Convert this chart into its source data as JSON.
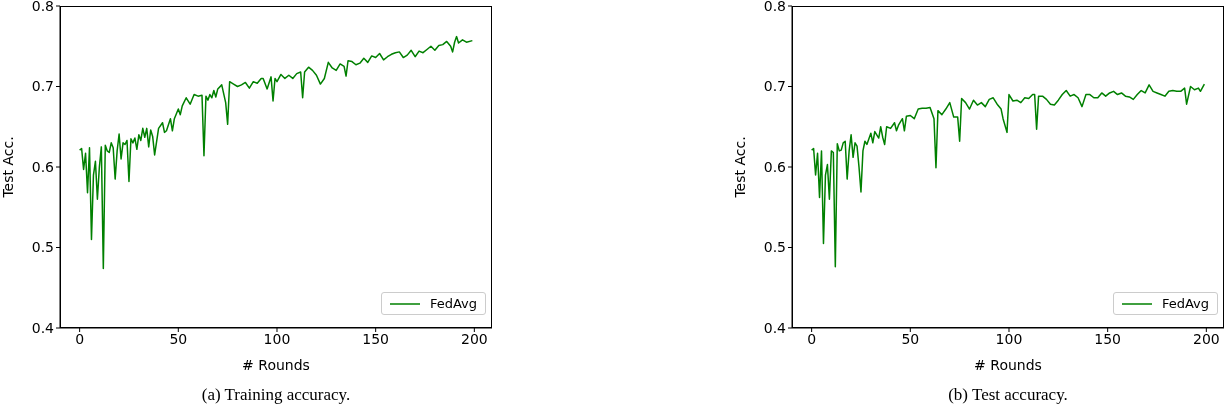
{
  "chart_data": [
    {
      "type": "line",
      "xlabel": "# Rounds",
      "ylabel": "Test Acc.",
      "annotations": [
        "(a) Training accuracy."
      ],
      "xlim": [
        -9.95,
        208.95
      ],
      "xticks": [
        0,
        50,
        100,
        150,
        200
      ],
      "ylim": [
        0.4,
        0.8
      ],
      "yticks": [
        0.4,
        0.5,
        0.6,
        0.7,
        0.8
      ],
      "legend": "bottom right",
      "line_style": "solid",
      "x": [
        0,
        1,
        2,
        3,
        4,
        5,
        6,
        7,
        8,
        9,
        10,
        11,
        12,
        13,
        14,
        15,
        16,
        17,
        18,
        19,
        20,
        21,
        22,
        23,
        24,
        25,
        26,
        27,
        28,
        29,
        30,
        31,
        32,
        33,
        34,
        35,
        36,
        37,
        38,
        40,
        42,
        43,
        44,
        46,
        47,
        48,
        50,
        51,
        52,
        54,
        56,
        58,
        60,
        62,
        63,
        64,
        65,
        66,
        67,
        68,
        69,
        70,
        72,
        74,
        75,
        76,
        78,
        80,
        82,
        84,
        86,
        88,
        90,
        92,
        93,
        95,
        97,
        98,
        99,
        100,
        102,
        104,
        106,
        108,
        110,
        112,
        113,
        114,
        116,
        118,
        120,
        122,
        124,
        126,
        128,
        130,
        132,
        134,
        135,
        136,
        138,
        140,
        142,
        144,
        146,
        148,
        150,
        152,
        154,
        156,
        158,
        160,
        162,
        164,
        166,
        168,
        170,
        172,
        174,
        176,
        178,
        180,
        182,
        184,
        186,
        188,
        189,
        190,
        191,
        192,
        194,
        196,
        199
      ],
      "series": [
        {
          "name": "FedAvg",
          "color": "#008000",
          "values": [
            0.621,
            0.623,
            0.597,
            0.617,
            0.568,
            0.624,
            0.51,
            0.59,
            0.607,
            0.56,
            0.6,
            0.625,
            0.474,
            0.627,
            0.62,
            0.618,
            0.63,
            0.624,
            0.585,
            0.62,
            0.641,
            0.61,
            0.63,
            0.628,
            0.633,
            0.582,
            0.635,
            0.63,
            0.636,
            0.622,
            0.64,
            0.633,
            0.648,
            0.637,
            0.648,
            0.625,
            0.646,
            0.638,
            0.615,
            0.648,
            0.655,
            0.643,
            0.645,
            0.66,
            0.645,
            0.66,
            0.672,
            0.665,
            0.676,
            0.686,
            0.678,
            0.69,
            0.688,
            0.689,
            0.614,
            0.688,
            0.683,
            0.69,
            0.686,
            0.695,
            0.687,
            0.697,
            0.702,
            0.68,
            0.653,
            0.706,
            0.703,
            0.7,
            0.702,
            0.705,
            0.698,
            0.706,
            0.704,
            0.71,
            0.71,
            0.697,
            0.712,
            0.682,
            0.71,
            0.706,
            0.715,
            0.71,
            0.714,
            0.71,
            0.716,
            0.718,
            0.686,
            0.718,
            0.724,
            0.72,
            0.714,
            0.703,
            0.71,
            0.73,
            0.723,
            0.72,
            0.728,
            0.725,
            0.713,
            0.732,
            0.731,
            0.727,
            0.729,
            0.735,
            0.73,
            0.738,
            0.736,
            0.741,
            0.733,
            0.737,
            0.74,
            0.742,
            0.743,
            0.736,
            0.739,
            0.745,
            0.737,
            0.744,
            0.742,
            0.746,
            0.75,
            0.745,
            0.751,
            0.752,
            0.756,
            0.75,
            0.743,
            0.755,
            0.762,
            0.754,
            0.758,
            0.755,
            0.757
          ]
        }
      ]
    },
    {
      "type": "line",
      "xlabel": "# Rounds",
      "ylabel": "Test Acc.",
      "annotations": [
        "(b) Test accuracy."
      ],
      "xlim": [
        -9.95,
        208.95
      ],
      "xticks": [
        0,
        50,
        100,
        150,
        200
      ],
      "ylim": [
        0.4,
        0.8
      ],
      "yticks": [
        0.4,
        0.5,
        0.6,
        0.7,
        0.8
      ],
      "legend": "bottom right",
      "line_style": "solid",
      "x": [
        0,
        1,
        2,
        3,
        4,
        5,
        6,
        7,
        8,
        9,
        10,
        11,
        12,
        13,
        14,
        15,
        16,
        17,
        18,
        19,
        20,
        21,
        22,
        23,
        24,
        25,
        26,
        27,
        28,
        30,
        31,
        32,
        34,
        35,
        36,
        37,
        38,
        40,
        42,
        43,
        44,
        46,
        47,
        48,
        50,
        52,
        54,
        56,
        58,
        60,
        62,
        63,
        64,
        66,
        68,
        70,
        72,
        74,
        75,
        76,
        78,
        80,
        82,
        84,
        86,
        88,
        90,
        92,
        94,
        96,
        97,
        99,
        100,
        102,
        104,
        106,
        108,
        110,
        112,
        113,
        114,
        115,
        117,
        119,
        121,
        123,
        125,
        127,
        129,
        131,
        133,
        135,
        137,
        139,
        141,
        143,
        145,
        147,
        149,
        151,
        153,
        155,
        157,
        159,
        161,
        163,
        165,
        167,
        169,
        171,
        173,
        175,
        177,
        179,
        181,
        183,
        185,
        187,
        189,
        190,
        192,
        194,
        196,
        197,
        199
      ],
      "series": [
        {
          "name": "FedAvg",
          "color": "#008000",
          "values": [
            0.621,
            0.623,
            0.59,
            0.617,
            0.562,
            0.62,
            0.505,
            0.59,
            0.603,
            0.56,
            0.62,
            0.618,
            0.476,
            0.629,
            0.62,
            0.621,
            0.63,
            0.632,
            0.585,
            0.62,
            0.64,
            0.612,
            0.63,
            0.626,
            0.6,
            0.569,
            0.62,
            0.632,
            0.628,
            0.642,
            0.63,
            0.644,
            0.636,
            0.65,
            0.637,
            0.628,
            0.65,
            0.648,
            0.655,
            0.645,
            0.652,
            0.66,
            0.645,
            0.663,
            0.664,
            0.66,
            0.672,
            0.673,
            0.673,
            0.674,
            0.66,
            0.599,
            0.67,
            0.665,
            0.672,
            0.68,
            0.662,
            0.662,
            0.632,
            0.685,
            0.68,
            0.672,
            0.683,
            0.677,
            0.68,
            0.675,
            0.684,
            0.686,
            0.678,
            0.672,
            0.66,
            0.643,
            0.69,
            0.682,
            0.683,
            0.68,
            0.686,
            0.685,
            0.69,
            0.69,
            0.647,
            0.688,
            0.688,
            0.684,
            0.678,
            0.677,
            0.683,
            0.69,
            0.695,
            0.688,
            0.69,
            0.686,
            0.675,
            0.69,
            0.69,
            0.686,
            0.686,
            0.692,
            0.688,
            0.692,
            0.694,
            0.69,
            0.692,
            0.688,
            0.687,
            0.684,
            0.69,
            0.695,
            0.692,
            0.702,
            0.694,
            0.692,
            0.69,
            0.688,
            0.694,
            0.695,
            0.694,
            0.694,
            0.698,
            0.678,
            0.7,
            0.696,
            0.698,
            0.694,
            0.703
          ]
        }
      ]
    }
  ]
}
